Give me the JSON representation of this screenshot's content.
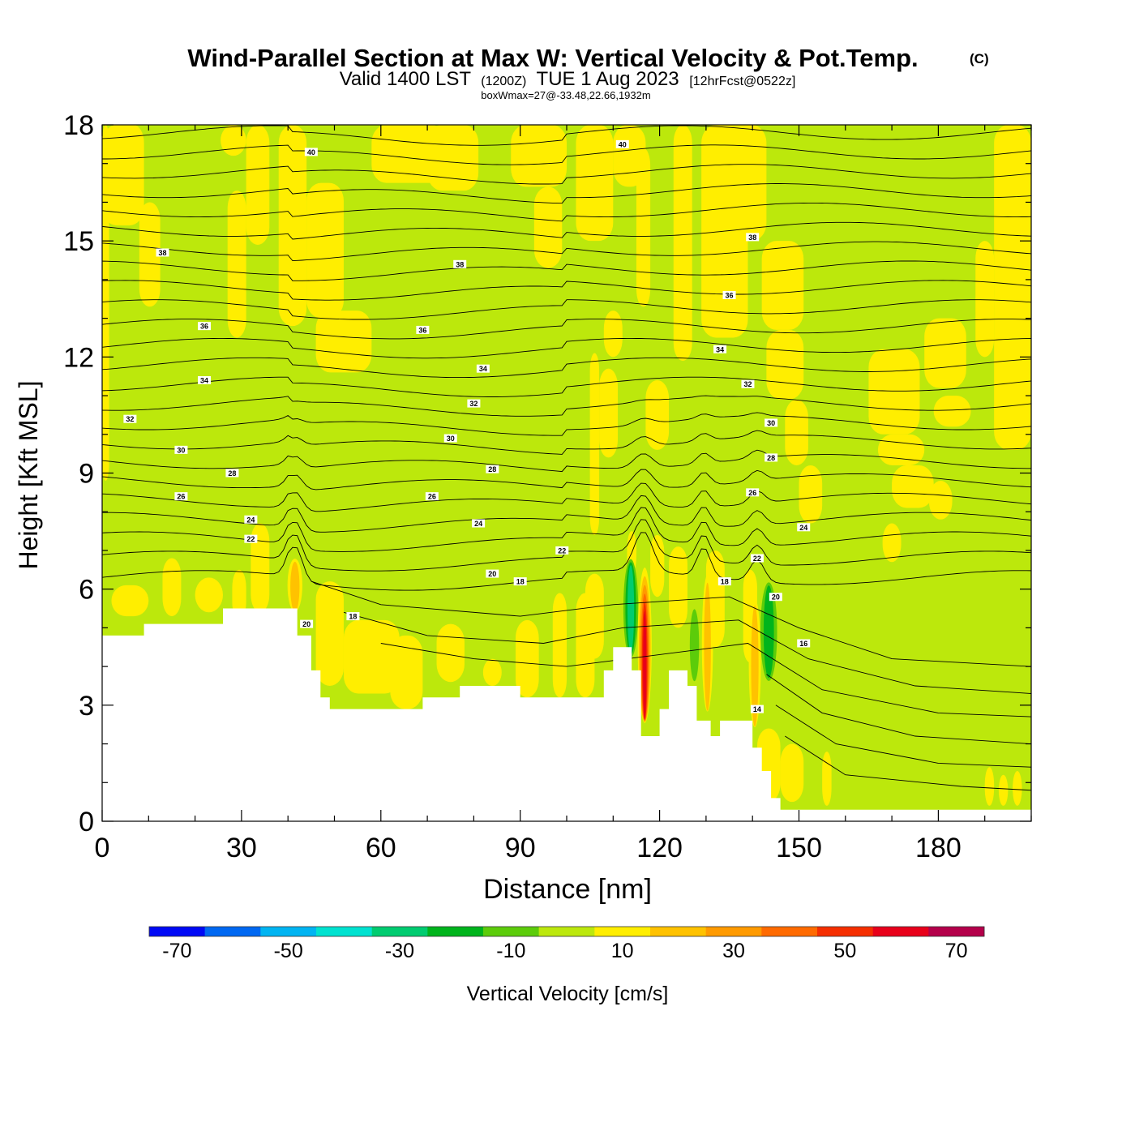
{
  "chart_data": {
    "type": "heatmap",
    "title": "Wind-Parallel Section at Max W: Vertical Velocity & Pot.Temp.",
    "title_mark": "(C)",
    "subtitle": {
      "valid": "Valid 1400 LST",
      "utc": "(1200Z)",
      "date": "TUE 1 Aug 2023",
      "fcst": "[12hrFcst@0522z]"
    },
    "box_info": "boxWmax=27@-33.48,22.66,1932m",
    "xlabel": "Distance [nm]",
    "ylabel": "Height [Kft MSL]",
    "xlim": [
      0,
      200
    ],
    "ylim": [
      0,
      18
    ],
    "x_ticks": [
      0,
      30,
      60,
      90,
      120,
      150,
      180
    ],
    "y_ticks": [
      0,
      3,
      6,
      9,
      12,
      15,
      18
    ],
    "colorbar": {
      "label": "Vertical Velocity [cm/s]",
      "range": [
        -75,
        75
      ],
      "tick_labels": [
        "-70",
        "-50",
        "-30",
        "-10",
        "10",
        "30",
        "50",
        "70"
      ],
      "colors": [
        "#0008f5",
        "#0068f2",
        "#00b4f2",
        "#00e2d0",
        "#00cc70",
        "#00b41c",
        "#5ccc0a",
        "#bce80c",
        "#ffee00",
        "#ffc200",
        "#ff9a00",
        "#ff6a00",
        "#f52e00",
        "#e8001a",
        "#b4004a"
      ]
    },
    "background_field": {
      "typical_w_cm_s": -5,
      "light_band_w_cm_s": 5
    },
    "terrain_kft": [
      [
        0,
        4.8
      ],
      [
        9,
        4.8
      ],
      [
        9,
        5.1
      ],
      [
        26,
        5.1
      ],
      [
        26,
        5.5
      ],
      [
        42,
        5.5
      ],
      [
        42,
        4.8
      ],
      [
        45,
        4.8
      ],
      [
        45,
        3.9
      ],
      [
        47,
        3.9
      ],
      [
        47,
        3.2
      ],
      [
        49,
        3.2
      ],
      [
        49,
        2.9
      ],
      [
        69,
        2.9
      ],
      [
        69,
        3.2
      ],
      [
        77,
        3.2
      ],
      [
        77,
        3.5
      ],
      [
        90,
        3.5
      ],
      [
        90,
        3.2
      ],
      [
        108,
        3.2
      ],
      [
        108,
        3.9
      ],
      [
        110,
        3.9
      ],
      [
        110,
        4.5
      ],
      [
        114,
        4.5
      ],
      [
        114,
        3.9
      ],
      [
        116,
        3.9
      ],
      [
        116,
        2.2
      ],
      [
        120,
        2.2
      ],
      [
        120,
        2.9
      ],
      [
        122,
        2.9
      ],
      [
        122,
        3.9
      ],
      [
        126,
        3.9
      ],
      [
        126,
        3.5
      ],
      [
        128,
        3.5
      ],
      [
        128,
        2.6
      ],
      [
        131,
        2.6
      ],
      [
        131,
        2.2
      ],
      [
        133,
        2.2
      ],
      [
        133,
        2.6
      ],
      [
        140,
        2.6
      ],
      [
        140,
        1.9
      ],
      [
        142,
        1.9
      ],
      [
        142,
        1.3
      ],
      [
        144,
        1.3
      ],
      [
        144,
        0.6
      ],
      [
        146,
        0.6
      ],
      [
        146,
        0.3
      ],
      [
        200,
        0.3
      ]
    ],
    "updraft_cores": [
      {
        "x": 41.5,
        "top": 6.8,
        "bottom": 5.4,
        "half_width": 1.6,
        "w_max": 25
      },
      {
        "x": 116.8,
        "top": 6.6,
        "bottom": 2.5,
        "half_width": 1.5,
        "w_max": 60
      },
      {
        "x": 130.3,
        "top": 6.4,
        "bottom": 2.8,
        "half_width": 1.2,
        "w_max": 20
      },
      {
        "x": 140.5,
        "top": 5.8,
        "bottom": 2.4,
        "half_width": 1.3,
        "w_max": 25
      }
    ],
    "downdraft_cores": [
      {
        "x": 113.8,
        "top": 6.8,
        "bottom": 4.2,
        "half_width": 1.6,
        "w_min": -35
      },
      {
        "x": 127.5,
        "top": 5.5,
        "bottom": 3.6,
        "half_width": 1.0,
        "w_min": -15
      },
      {
        "x": 143.5,
        "top": 6.2,
        "bottom": 3.6,
        "half_width": 1.8,
        "w_min": -20
      }
    ],
    "theta_contour_labels": [
      {
        "x": 45,
        "y": 17.3,
        "text": "40"
      },
      {
        "x": 112,
        "y": 17.5,
        "text": "40"
      },
      {
        "x": 13,
        "y": 14.7,
        "text": "38"
      },
      {
        "x": 77,
        "y": 14.4,
        "text": "38"
      },
      {
        "x": 140,
        "y": 15.1,
        "text": "38"
      },
      {
        "x": 22,
        "y": 12.8,
        "text": "36"
      },
      {
        "x": 69,
        "y": 12.7,
        "text": "36"
      },
      {
        "x": 135,
        "y": 13.6,
        "text": "36"
      },
      {
        "x": 22,
        "y": 11.4,
        "text": "34"
      },
      {
        "x": 82,
        "y": 11.7,
        "text": "34"
      },
      {
        "x": 133,
        "y": 12.2,
        "text": "34"
      },
      {
        "x": 6,
        "y": 10.4,
        "text": "32"
      },
      {
        "x": 80,
        "y": 10.8,
        "text": "32"
      },
      {
        "x": 139,
        "y": 11.3,
        "text": "32"
      },
      {
        "x": 17,
        "y": 9.6,
        "text": "30"
      },
      {
        "x": 75,
        "y": 9.9,
        "text": "30"
      },
      {
        "x": 144,
        "y": 10.3,
        "text": "30"
      },
      {
        "x": 28,
        "y": 9.0,
        "text": "28"
      },
      {
        "x": 84,
        "y": 9.1,
        "text": "28"
      },
      {
        "x": 144,
        "y": 9.4,
        "text": "28"
      },
      {
        "x": 17,
        "y": 8.4,
        "text": "26"
      },
      {
        "x": 71,
        "y": 8.4,
        "text": "26"
      },
      {
        "x": 140,
        "y": 8.5,
        "text": "26"
      },
      {
        "x": 32,
        "y": 7.8,
        "text": "24"
      },
      {
        "x": 81,
        "y": 7.7,
        "text": "24"
      },
      {
        "x": 151,
        "y": 7.6,
        "text": "24"
      },
      {
        "x": 32,
        "y": 7.3,
        "text": "22"
      },
      {
        "x": 99,
        "y": 7.0,
        "text": "22"
      },
      {
        "x": 141,
        "y": 6.8,
        "text": "22"
      },
      {
        "x": 84,
        "y": 6.4,
        "text": "20"
      },
      {
        "x": 145,
        "y": 5.8,
        "text": "20"
      },
      {
        "x": 44,
        "y": 5.1,
        "text": "20"
      },
      {
        "x": 90,
        "y": 6.2,
        "text": "18"
      },
      {
        "x": 134,
        "y": 6.2,
        "text": "18"
      },
      {
        "x": 54,
        "y": 5.3,
        "text": "18"
      },
      {
        "x": 151,
        "y": 4.6,
        "text": "16"
      },
      {
        "x": 141,
        "y": 2.9,
        "text": "14"
      }
    ]
  }
}
